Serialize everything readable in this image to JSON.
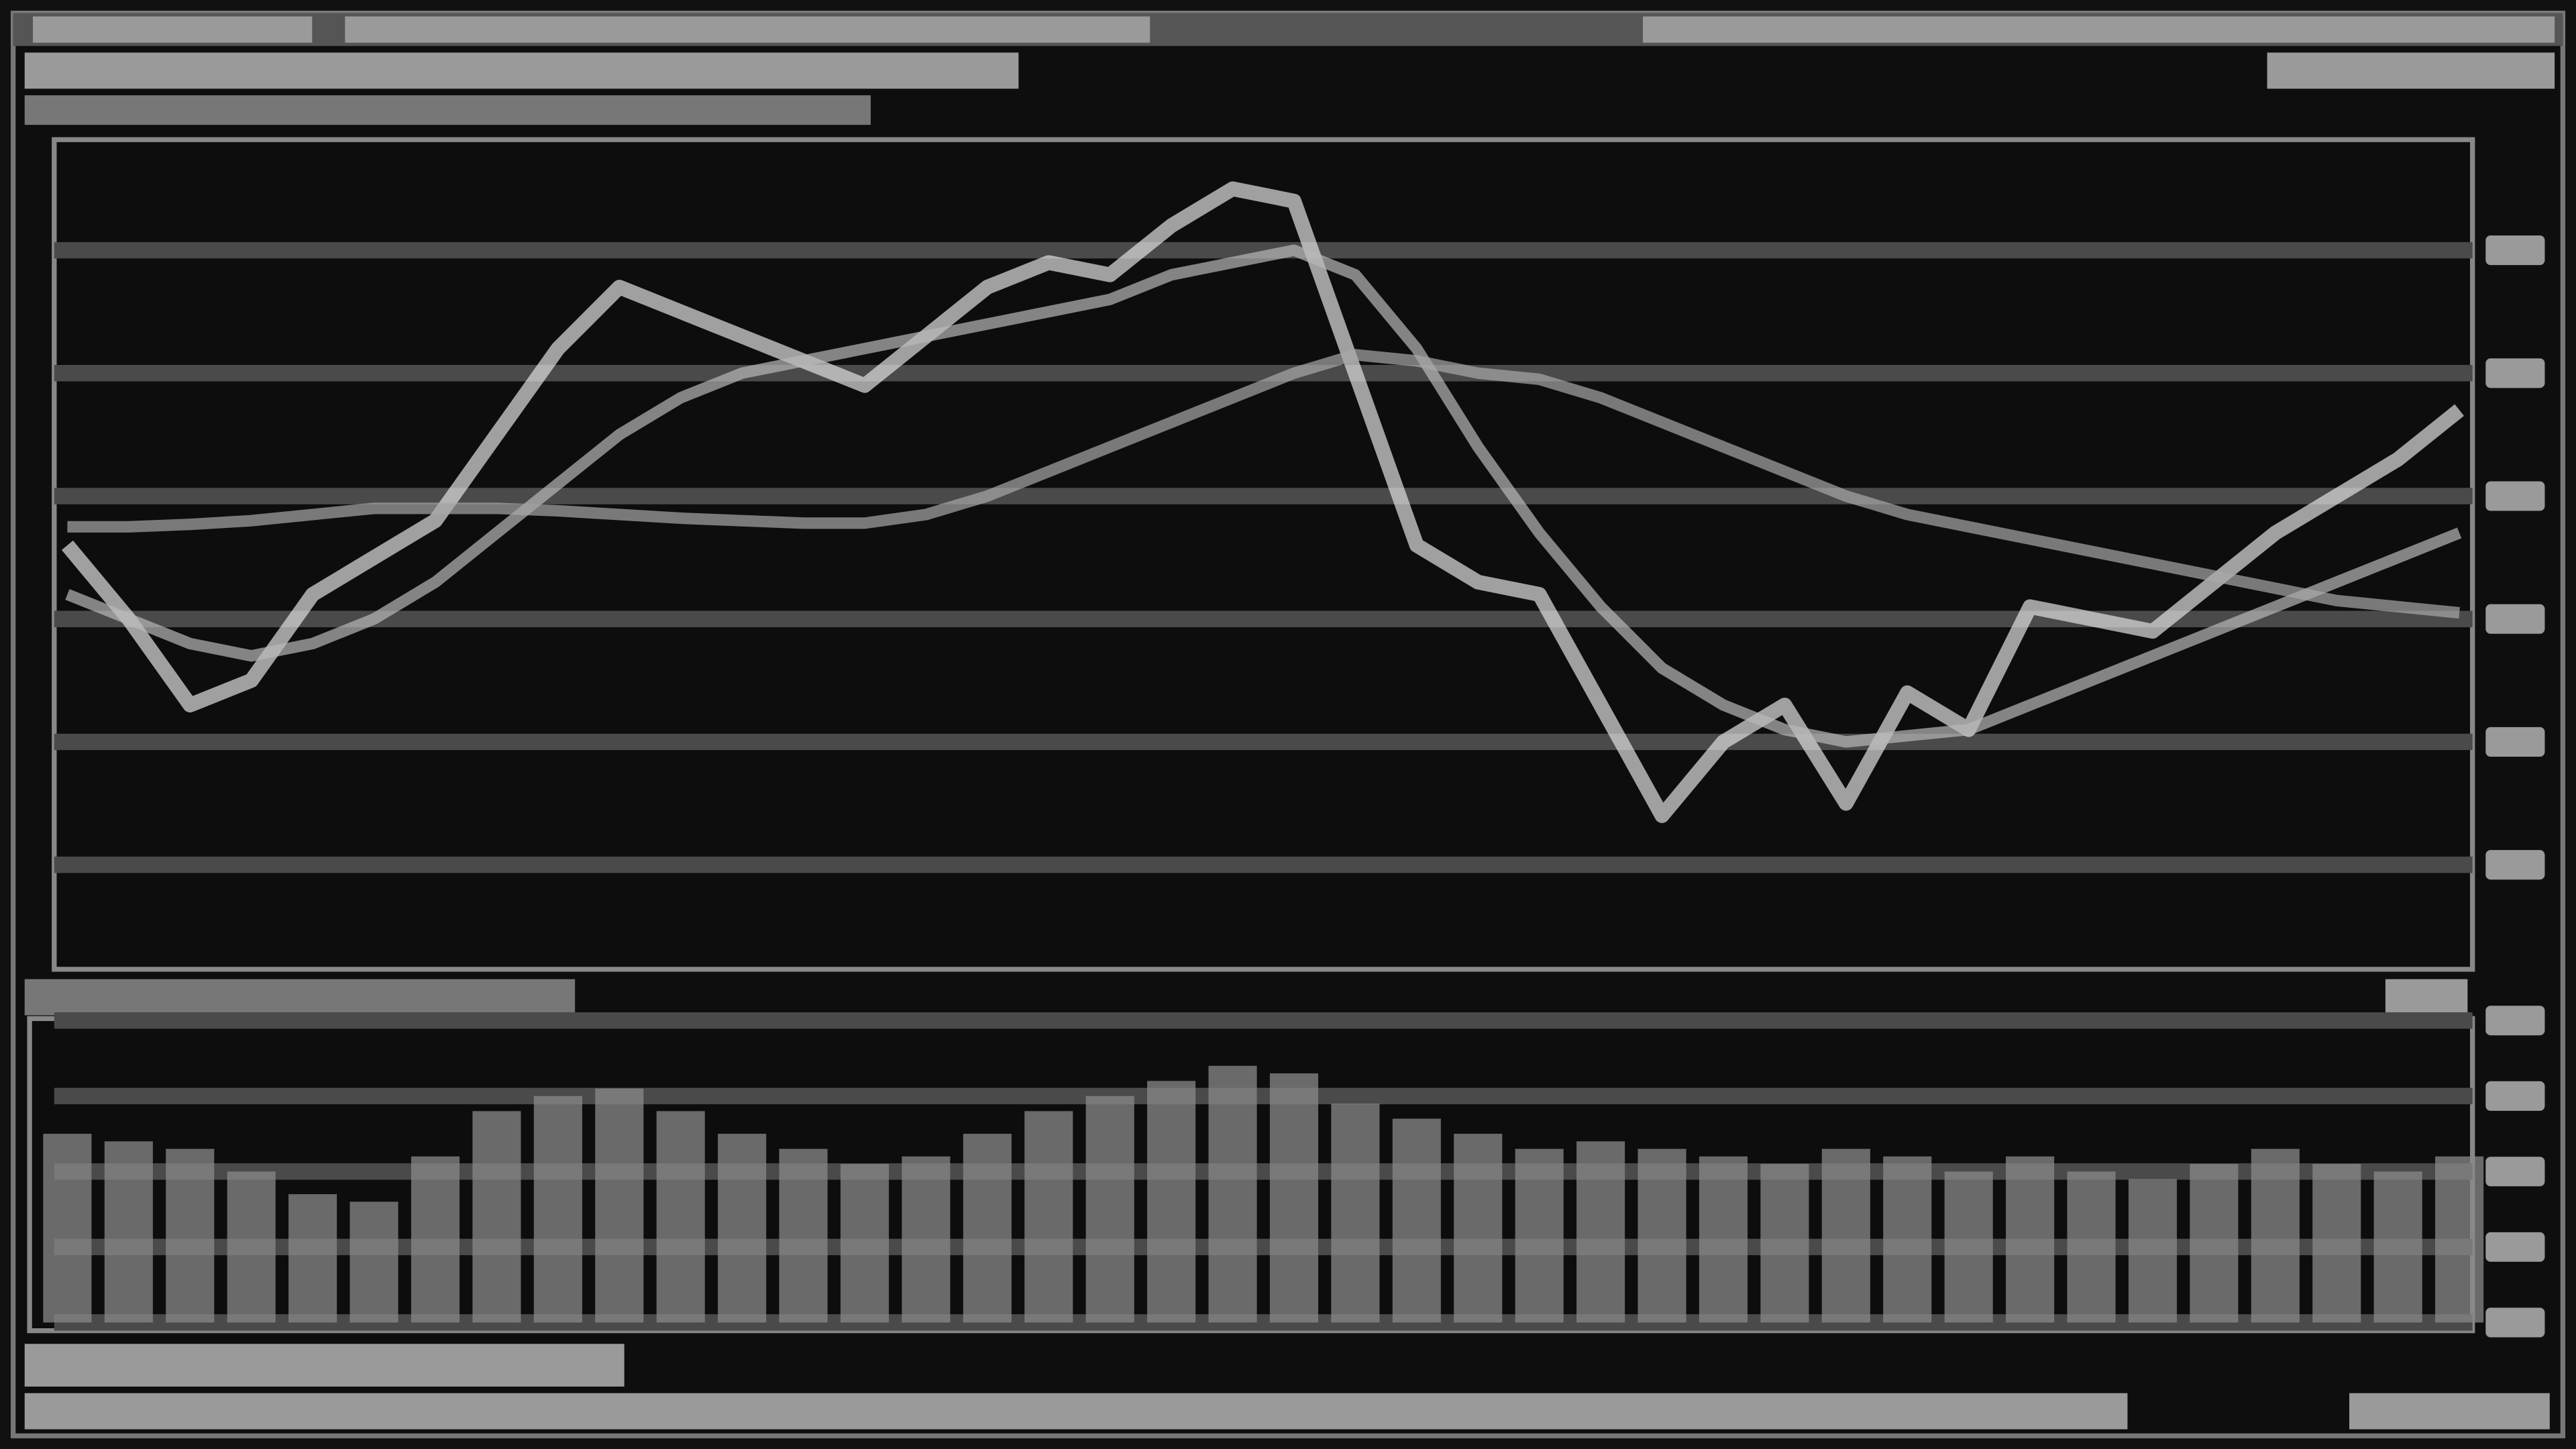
{
  "chart_data": [
    {
      "type": "line",
      "categories": [
        null,
        null,
        null,
        null,
        null,
        null,
        null,
        null,
        null,
        null,
        null,
        null,
        null,
        null,
        null,
        null,
        null,
        null,
        null,
        null,
        null,
        null,
        null,
        null,
        null,
        null,
        null,
        null,
        null,
        null,
        null,
        null,
        null,
        null,
        null,
        null,
        null,
        null,
        null,
        null
      ],
      "ylim": [
        21.5,
        89
      ],
      "yticks": [
        30,
        40,
        50,
        60,
        70,
        80
      ],
      "grid": true,
      "series": [
        {
          "color": "#e0e0e0",
          "values": [
            56,
            50,
            43,
            45,
            52,
            55,
            58,
            65,
            72,
            77,
            75,
            73,
            71,
            69,
            73,
            77,
            79,
            78,
            82,
            85,
            84,
            70,
            56,
            53,
            52,
            43,
            34,
            40,
            43,
            35,
            44,
            41,
            51,
            50,
            49,
            53,
            57,
            60,
            63,
            67
          ]
        },
        {
          "color": "#b8b8b8",
          "values": [
            52,
            50,
            48,
            47,
            48,
            50,
            53,
            57,
            61,
            65,
            68,
            70,
            71,
            72,
            73,
            74,
            75,
            76,
            78,
            79,
            80,
            78,
            72,
            64,
            57,
            51,
            46,
            43,
            41,
            40,
            40.5,
            41,
            43,
            45,
            47,
            49,
            51,
            53,
            55,
            57
          ]
        },
        {
          "color": "#a8a8a8",
          "values": [
            57.5,
            57.5,
            57.7,
            58,
            58.5,
            59,
            59,
            59,
            58.8,
            58.5,
            58.2,
            58,
            57.8,
            57.8,
            58.5,
            60,
            62,
            64,
            66,
            68,
            70,
            71.5,
            71,
            70,
            69.5,
            68,
            66,
            64,
            62,
            60,
            58.5,
            57.5,
            56.5,
            55.5,
            54.5,
            53.5,
            52.5,
            51.5,
            51,
            50.5
          ]
        }
      ]
    },
    {
      "type": "bar",
      "categories": [
        null,
        null,
        null,
        null,
        null,
        null,
        null,
        null,
        null,
        null,
        null,
        null,
        null,
        null,
        null,
        null,
        null,
        null,
        null,
        null,
        null,
        null,
        null,
        null,
        null,
        null,
        null,
        null,
        null,
        null,
        null,
        null,
        null,
        null,
        null,
        null,
        null,
        null,
        null,
        null
      ],
      "ylim": [
        0,
        4.2
      ],
      "yticks": [
        0,
        1,
        2,
        3,
        4
      ],
      "grid": true,
      "color": "#8a8a8a",
      "values": [
        2.5,
        2.4,
        2.3,
        2.0,
        1.7,
        1.6,
        2.2,
        2.8,
        3.0,
        3.1,
        2.8,
        2.5,
        2.3,
        2.1,
        2.2,
        2.5,
        2.8,
        3.0,
        3.2,
        3.4,
        3.3,
        2.9,
        2.7,
        2.5,
        2.3,
        2.4,
        2.3,
        2.2,
        2.1,
        2.3,
        2.2,
        2.0,
        2.2,
        2.0,
        1.9,
        2.1,
        2.3,
        2.1,
        2.0,
        2.2
      ]
    }
  ]
}
